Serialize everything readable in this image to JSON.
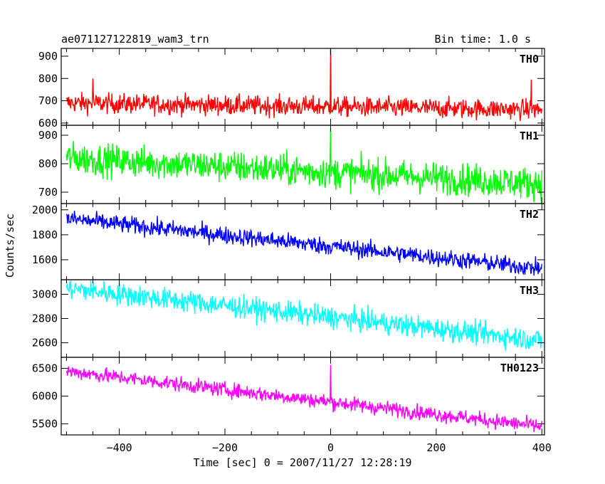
{
  "chart_data": {
    "type": "line",
    "title": "ae071127122819_wam3_trn",
    "bin_time_label": "Bin time: 1.0 s",
    "xlabel": "Time [sec] 0 = 2007/11/27 12:28:19",
    "ylabel": "Counts/sec",
    "xlim": [
      -510,
      405
    ],
    "x_ticks": [
      -400,
      -200,
      0,
      200,
      400
    ],
    "grid": false,
    "panels": [
      {
        "name": "TH0",
        "color": "#ff0000",
        "ylim": [
          590,
          935
        ],
        "y_ticks": [
          600,
          700,
          800,
          900
        ],
        "start_mean": 690,
        "end_mean": 660,
        "noise": 32,
        "spikes": [
          {
            "x": 0,
            "y": 935
          },
          {
            "x": 380,
            "y": 795
          },
          {
            "x": -450,
            "y": 800
          }
        ]
      },
      {
        "name": "TH1",
        "color": "#00ff00",
        "ylim": [
          660,
          935
        ],
        "y_ticks": [
          700,
          800,
          900
        ],
        "start_mean": 820,
        "end_mean": 730,
        "noise": 40,
        "spikes": [
          {
            "x": 0,
            "y": 925
          }
        ]
      },
      {
        "name": "TH2",
        "color": "#0000ff",
        "ylim": [
          1440,
          2050
        ],
        "y_ticks": [
          1600,
          1800,
          2000
        ],
        "start_mean": 1930,
        "end_mean": 1530,
        "noise": 50,
        "spikes": []
      },
      {
        "name": "TH3",
        "color": "#00ffff",
        "ylim": [
          2480,
          3120
        ],
        "y_ticks": [
          2600,
          2800,
          3000
        ],
        "start_mean": 3050,
        "end_mean": 2620,
        "noise": 65,
        "spikes": []
      },
      {
        "name": "TH0123",
        "color": "#ff00ff",
        "ylim": [
          5300,
          6700
        ],
        "y_ticks": [
          5500,
          6000,
          6500
        ],
        "start_mean": 6450,
        "end_mean": 5450,
        "noise": 95,
        "spikes": [
          {
            "x": 0,
            "y": 6560
          }
        ]
      }
    ]
  }
}
